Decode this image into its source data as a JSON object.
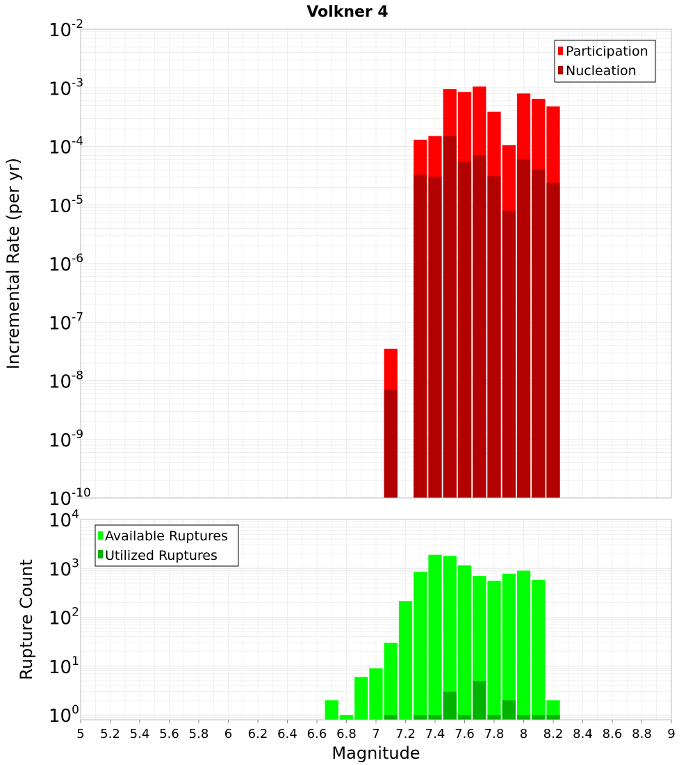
{
  "title": "Volkner 4",
  "colors": {
    "participation": "#ff0000",
    "nucleation": "#b30000",
    "available": "#00ff00",
    "utilized": "#00b300",
    "grid": "#e6e6e6",
    "frame": "#bbbbbb"
  },
  "chart_data": [
    {
      "type": "bar",
      "panel": "top",
      "title": "Volkner 4",
      "xlabel": "",
      "ylabel": "Incremental Rate (per yr)",
      "yscale": "log",
      "xlim": [
        5,
        9
      ],
      "ylim": [
        1e-10,
        0.01
      ],
      "ytick_exponents": [
        -10,
        -9,
        -8,
        -7,
        -6,
        -5,
        -4,
        -3,
        -2
      ],
      "bin_width": 0.1,
      "x": [
        7.1,
        7.3,
        7.4,
        7.5,
        7.6,
        7.7,
        7.8,
        7.9,
        8.0,
        8.1,
        8.2
      ],
      "series": [
        {
          "name": "Participation",
          "values": [
            3.5e-08,
            0.00013,
            0.00015,
            0.00095,
            0.00085,
            0.00105,
            0.00039,
            0.000105,
            0.0008,
            0.00065,
            0.00048
          ]
        },
        {
          "name": "Nucleation",
          "values": [
            7e-09,
            3.3e-05,
            3e-05,
            0.00015,
            5.5e-05,
            7e-05,
            3.1e-05,
            8e-06,
            6e-05,
            4e-05,
            2.4e-05
          ]
        }
      ],
      "grid": true,
      "legend": "top-right"
    },
    {
      "type": "bar",
      "panel": "bottom",
      "xlabel": "Magnitude",
      "ylabel": "Rupture Count",
      "yscale": "log",
      "xlim": [
        5,
        9
      ],
      "ylim": [
        0.8,
        10000
      ],
      "ytick_exponents": [
        0,
        1,
        2,
        3,
        4
      ],
      "xticks": [
        "5",
        "5.2",
        "5.4",
        "5.6",
        "5.8",
        "6",
        "6.2",
        "6.4",
        "6.6",
        "6.8",
        "7",
        "7.2",
        "7.4",
        "7.6",
        "7.8",
        "8",
        "8.2",
        "8.4",
        "8.6",
        "8.8",
        "9"
      ],
      "bin_width": 0.1,
      "x": [
        6.7,
        6.8,
        6.9,
        7.0,
        7.1,
        7.2,
        7.3,
        7.4,
        7.5,
        7.6,
        7.7,
        7.8,
        7.9,
        8.0,
        8.1,
        8.2
      ],
      "series": [
        {
          "name": "Available Ruptures",
          "values": [
            2,
            1,
            6,
            9,
            30,
            215,
            850,
            1900,
            1800,
            1150,
            700,
            560,
            780,
            900,
            580,
            2
          ]
        },
        {
          "name": "Utilized Ruptures",
          "values": [
            0,
            0,
            0,
            0,
            1,
            0,
            1,
            1,
            3,
            1,
            5,
            1,
            2,
            1,
            1,
            1
          ]
        }
      ],
      "grid": true,
      "legend": "top-left"
    }
  ]
}
